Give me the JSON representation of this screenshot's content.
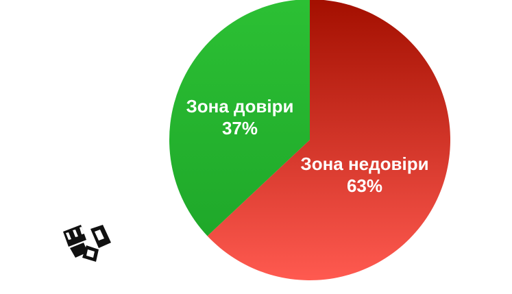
{
  "chart_data": {
    "type": "pie",
    "slices": [
      {
        "label": "Зона недовіри",
        "value": 63,
        "value_label": "63%",
        "color_top": "#a30f00",
        "color_bottom": "#ff5a50"
      },
      {
        "label": "Зона довіри",
        "value": 37,
        "value_label": "37%",
        "color_top": "#2cc034",
        "color_bottom": "#1fa82a"
      }
    ],
    "start_angle_deg": 0,
    "direction": "clockwise",
    "legend": "none"
  },
  "logo": {
    "icon": "clapping-hands-icon",
    "color": "#111111"
  }
}
